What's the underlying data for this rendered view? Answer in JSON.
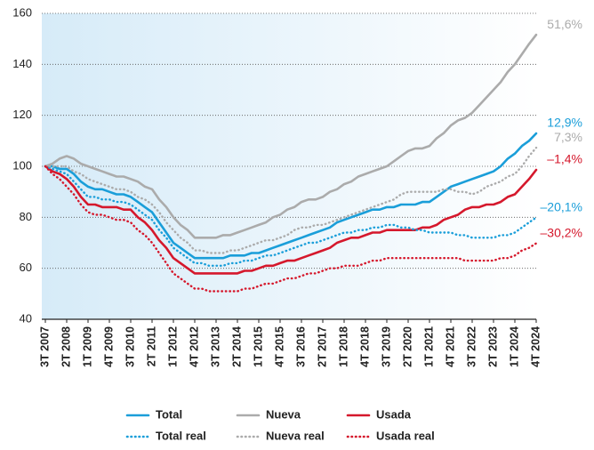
{
  "chart_data": {
    "type": "line",
    "categories": [
      "3T 2007",
      null,
      null,
      "2T 2008",
      null,
      null,
      "1T 2009",
      null,
      null,
      "4T 2009",
      null,
      null,
      "3T 2010",
      null,
      null,
      "2T 2011",
      null,
      null,
      "1T 2012",
      null,
      null,
      "4T 2012",
      null,
      null,
      "3T 2013",
      null,
      null,
      "2T 2014",
      null,
      null,
      "1T 2015",
      null,
      null,
      "4T 2015",
      null,
      null,
      "3T 2016",
      null,
      null,
      "2T 2017",
      null,
      null,
      "1T 2018",
      null,
      null,
      "4T 2018",
      null,
      null,
      "3T 2019",
      null,
      null,
      "2T 2020",
      null,
      null,
      "1T 2021",
      null,
      null,
      "4T 2021",
      null,
      null,
      "3T 2022",
      null,
      null,
      "2T 2023",
      null,
      null,
      "1T 2024",
      null,
      null,
      "4T 2024"
    ],
    "ylim": [
      40,
      160
    ],
    "yticks": [
      40,
      60,
      80,
      100,
      120,
      140,
      160
    ],
    "grid": true,
    "series": [
      {
        "name": "Total",
        "color": "#1a9ed9",
        "dashed": false,
        "end_label": "12,9%",
        "values": [
          100,
          100,
          99,
          99,
          97,
          94,
          92,
          91,
          91,
          90,
          89,
          89,
          88,
          86,
          84,
          82,
          78,
          74,
          70,
          68,
          66,
          64,
          64,
          64,
          64,
          64,
          65,
          65,
          65,
          66,
          66,
          67,
          68,
          69,
          70,
          71,
          72,
          73,
          74,
          75,
          76,
          78,
          79,
          80,
          81,
          82,
          83,
          83,
          84,
          84,
          85,
          85,
          85,
          86,
          86,
          88,
          90,
          92,
          93,
          94,
          95,
          96,
          97,
          98,
          100,
          103,
          105,
          108,
          110,
          112.9
        ]
      },
      {
        "name": "Nueva",
        "color": "#ababab",
        "dashed": false,
        "end_label": "51,6%",
        "values": [
          100,
          101,
          103,
          104,
          103,
          101,
          100,
          99,
          98,
          97,
          96,
          96,
          95,
          94,
          92,
          91,
          87,
          84,
          80,
          77,
          75,
          72,
          72,
          72,
          72,
          73,
          73,
          74,
          75,
          76,
          77,
          78,
          80,
          81,
          83,
          84,
          86,
          87,
          87,
          88,
          90,
          91,
          93,
          94,
          96,
          97,
          98,
          99,
          100,
          102,
          104,
          106,
          107,
          107,
          108,
          111,
          113,
          116,
          118,
          119,
          121,
          124,
          127,
          130,
          133,
          137,
          140,
          144,
          148,
          151.6
        ]
      },
      {
        "name": "Usada",
        "color": "#d5182c",
        "dashed": false,
        "end_label": "–1,4%",
        "values": [
          100,
          98,
          97,
          95,
          92,
          88,
          85,
          85,
          84,
          84,
          84,
          83,
          83,
          80,
          78,
          75,
          71,
          68,
          64,
          62,
          60,
          58,
          58,
          58,
          58,
          58,
          58,
          58,
          59,
          59,
          60,
          61,
          61,
          62,
          63,
          63,
          64,
          65,
          66,
          67,
          68,
          70,
          71,
          72,
          72,
          73,
          74,
          74,
          75,
          75,
          75,
          75,
          75,
          76,
          76,
          77,
          79,
          80,
          81,
          83,
          84,
          84,
          85,
          85,
          86,
          88,
          89,
          92,
          95,
          98.6
        ]
      },
      {
        "name": "Total real",
        "color": "#1a9ed9",
        "dashed": true,
        "end_label": "–20,1%",
        "values": [
          100,
          99,
          98,
          97,
          94,
          91,
          88,
          88,
          87,
          87,
          86,
          86,
          85,
          83,
          81,
          79,
          75,
          72,
          68,
          66,
          64,
          62,
          62,
          61,
          61,
          61,
          62,
          62,
          63,
          63,
          64,
          65,
          65,
          66,
          67,
          68,
          69,
          70,
          70,
          71,
          72,
          73,
          74,
          74,
          75,
          75,
          76,
          76,
          77,
          77,
          76,
          76,
          75,
          75,
          74,
          74,
          74,
          74,
          73,
          73,
          72,
          72,
          72,
          72,
          73,
          73,
          74,
          76,
          78,
          79.9
        ]
      },
      {
        "name": "Nueva real",
        "color": "#ababab",
        "dashed": true,
        "end_label": "7,3%",
        "values": [
          100,
          100,
          100,
          100,
          98,
          97,
          95,
          94,
          93,
          92,
          91,
          91,
          90,
          88,
          87,
          85,
          82,
          78,
          75,
          72,
          70,
          67,
          67,
          66,
          66,
          66,
          67,
          67,
          68,
          69,
          70,
          71,
          71,
          72,
          73,
          75,
          76,
          76,
          77,
          77,
          78,
          79,
          80,
          81,
          82,
          83,
          84,
          85,
          86,
          87,
          89,
          90,
          90,
          90,
          90,
          90,
          91,
          91,
          90,
          90,
          89,
          90,
          92,
          93,
          94,
          96,
          97,
          100,
          104,
          107.3
        ]
      },
      {
        "name": "Usada real",
        "color": "#d5182c",
        "dashed": true,
        "end_label": "–30,2%",
        "values": [
          100,
          97,
          95,
          92,
          89,
          85,
          82,
          81,
          81,
          80,
          79,
          79,
          78,
          75,
          73,
          70,
          66,
          62,
          58,
          56,
          54,
          52,
          52,
          51,
          51,
          51,
          51,
          51,
          52,
          52,
          53,
          54,
          54,
          55,
          56,
          56,
          57,
          58,
          58,
          59,
          60,
          60,
          61,
          61,
          61,
          62,
          63,
          63,
          64,
          64,
          64,
          64,
          64,
          64,
          64,
          64,
          64,
          64,
          64,
          63,
          63,
          63,
          63,
          63,
          64,
          64,
          65,
          67,
          68,
          69.8
        ]
      }
    ]
  }
}
